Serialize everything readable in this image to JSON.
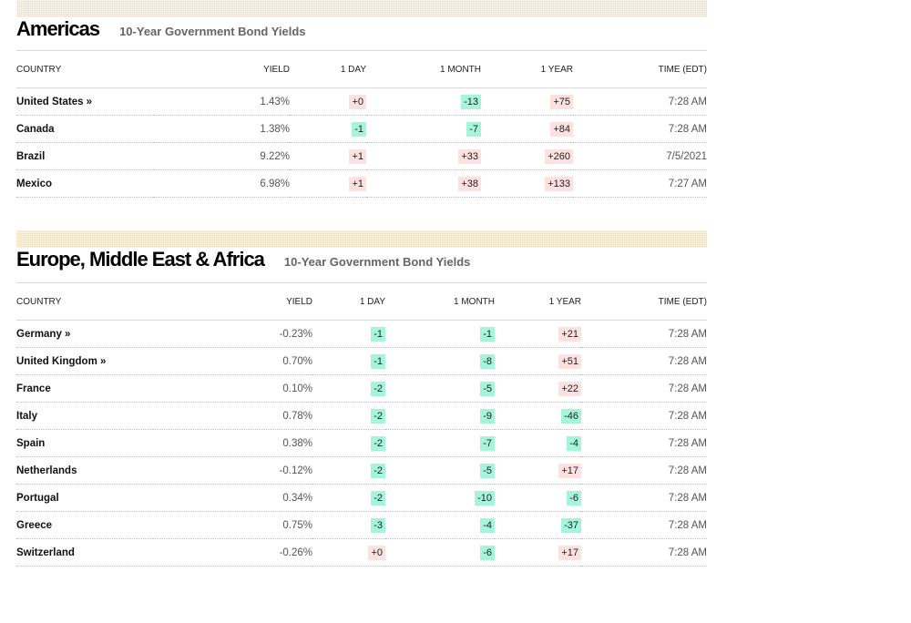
{
  "sections": [
    {
      "title": "Americas",
      "subtitle": "10-Year Government Bond Yields",
      "columns": [
        "COUNTRY",
        "YIELD",
        "1 DAY",
        "1 MONTH",
        "1 YEAR",
        "TIME (EDT)"
      ],
      "rows": [
        {
          "country": "United States »",
          "yield": "1.43%",
          "day": "+0",
          "month": "-13",
          "year": "+75",
          "time": "7:28 AM"
        },
        {
          "country": "Canada",
          "yield": "1.38%",
          "day": "-1",
          "month": "-7",
          "year": "+84",
          "time": "7:28 AM"
        },
        {
          "country": "Brazil",
          "yield": "9.22%",
          "day": "+1",
          "month": "+33",
          "year": "+260",
          "time": "7/5/2021"
        },
        {
          "country": "Mexico",
          "yield": "6.98%",
          "day": "+1",
          "month": "+38",
          "year": "+133",
          "time": "7:27 AM"
        }
      ]
    },
    {
      "title": "Europe, Middle East & Africa",
      "subtitle": "10-Year Government Bond Yields",
      "columns": [
        "COUNTRY",
        "YIELD",
        "1 DAY",
        "1 MONTH",
        "1 YEAR",
        "TIME (EDT)"
      ],
      "rows": [
        {
          "country": "Germany »",
          "yield": "-0.23%",
          "day": "-1",
          "month": "-1",
          "year": "+21",
          "time": "7:28 AM"
        },
        {
          "country": "United Kingdom »",
          "yield": "0.70%",
          "day": "-1",
          "month": "-8",
          "year": "+51",
          "time": "7:28 AM"
        },
        {
          "country": "France",
          "yield": "0.10%",
          "day": "-2",
          "month": "-5",
          "year": "+22",
          "time": "7:28 AM"
        },
        {
          "country": "Italy",
          "yield": "0.78%",
          "day": "-2",
          "month": "-9",
          "year": "-46",
          "time": "7:28 AM"
        },
        {
          "country": "Spain",
          "yield": "0.38%",
          "day": "-2",
          "month": "-7",
          "year": "-4",
          "time": "7:28 AM"
        },
        {
          "country": "Netherlands",
          "yield": "-0.12%",
          "day": "-2",
          "month": "-5",
          "year": "+17",
          "time": "7:28 AM"
        },
        {
          "country": "Portugal",
          "yield": "0.34%",
          "day": "-2",
          "month": "-10",
          "year": "-6",
          "time": "7:28 AM"
        },
        {
          "country": "Greece",
          "yield": "0.75%",
          "day": "-3",
          "month": "-4",
          "year": "-37",
          "time": "7:28 AM"
        },
        {
          "country": "Switzerland",
          "yield": "-0.26%",
          "day": "+0",
          "month": "-6",
          "year": "+17",
          "time": "7:28 AM"
        }
      ]
    }
  ],
  "colors": {
    "stripe": "#f7d9a0",
    "positive_bg": "#fde1e1",
    "negative_bg": "#a6f5db"
  }
}
